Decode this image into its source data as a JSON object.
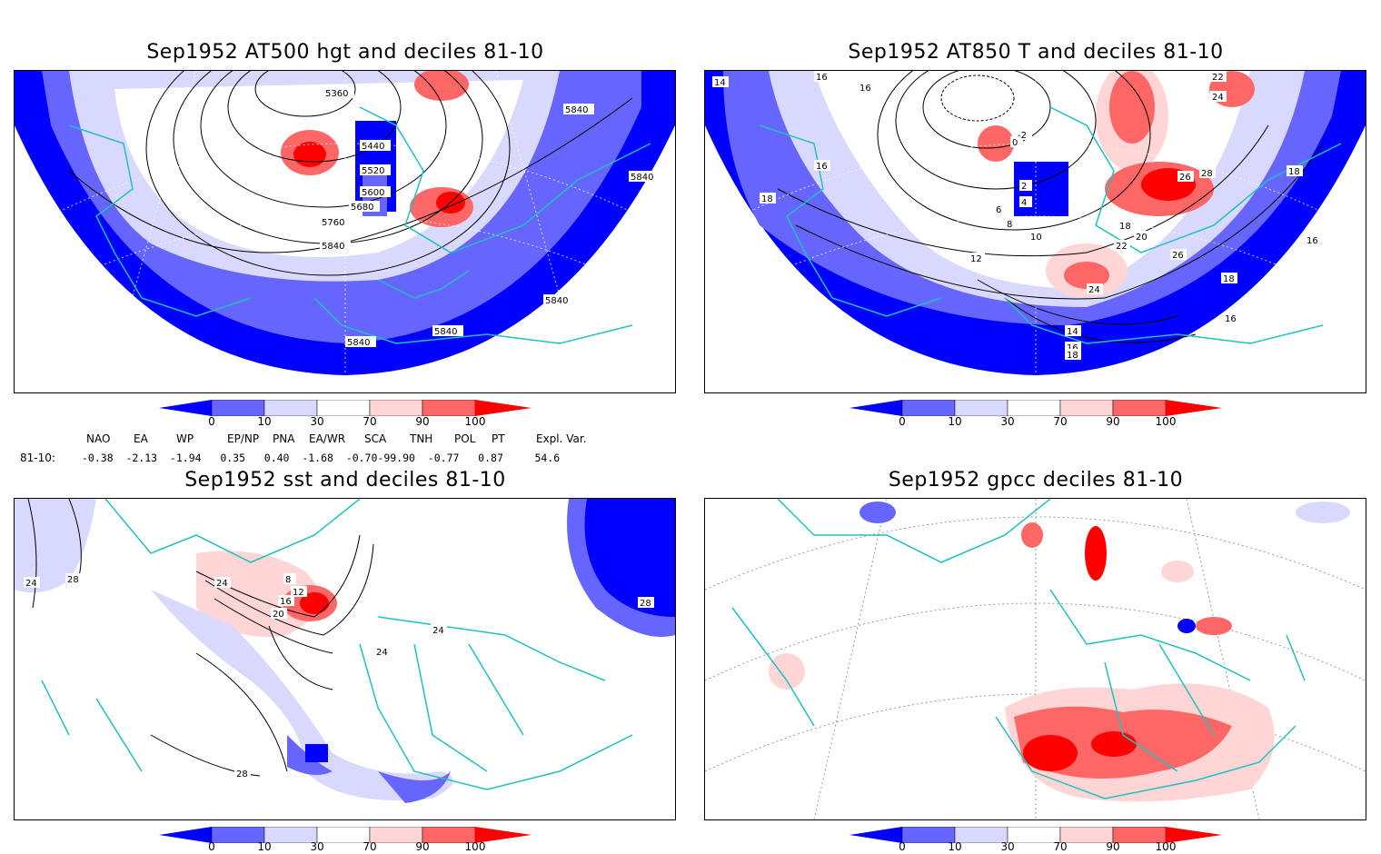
{
  "panels": [
    {
      "id": "hgt500",
      "title": "Sep1952 AT500 hgt and deciles 81-10",
      "contour_labels": [
        "5360",
        "5440",
        "5520",
        "5600",
        "5680",
        "5760",
        "5840",
        "5840",
        "5840",
        "5840",
        "5840",
        "5840"
      ]
    },
    {
      "id": "t850",
      "title": "Sep1952 AT850 T and deciles 81-10",
      "contour_labels": [
        "16",
        "14",
        "16",
        "16",
        "18",
        "18",
        "0",
        "-2",
        "2",
        "4",
        "6",
        "8",
        "10",
        "12",
        "14",
        "16",
        "18",
        "20",
        "22",
        "24",
        "26",
        "26",
        "28",
        "22",
        "24",
        "18",
        "16",
        "18",
        "16"
      ]
    },
    {
      "id": "sst",
      "title": "Sep1952 sst and deciles 81-10",
      "contour_labels": [
        "24",
        "28",
        "24",
        "8",
        "12",
        "16",
        "20",
        "24",
        "24",
        "28",
        "28"
      ]
    },
    {
      "id": "gpcc",
      "title": "Sep1952 gpcc deciles 81-10",
      "contour_labels": []
    }
  ],
  "colorbar": {
    "ticks": [
      "0",
      "10",
      "30",
      "70",
      "90",
      "100"
    ],
    "colors": [
      "#0000ff",
      "#6666ff",
      "#d9d9ff",
      "#ffffff",
      "#ffd5d5",
      "#ff6666",
      "#ff0000"
    ]
  },
  "indices": {
    "row_label": "81-10:",
    "headers": [
      "NAO",
      "EA",
      "WP",
      "EP/NP",
      "PNA",
      "EA/WR",
      "SCA",
      "TNH",
      "POL",
      "PT",
      "Expl. Var."
    ],
    "values_text": "-0.38  -2.13  -1.94   0.35   0.40  -1.68  -0.70-99.90  -0.77   0.87     54.6"
  },
  "colors": {
    "coast": "#20c0c0",
    "strong_neg": "#0000ff",
    "mod_neg": "#6666ff",
    "weak_neg": "#d9d9ff",
    "weak_pos": "#ffd5d5",
    "mod_pos": "#ff6666",
    "strong_pos": "#ff0000"
  }
}
